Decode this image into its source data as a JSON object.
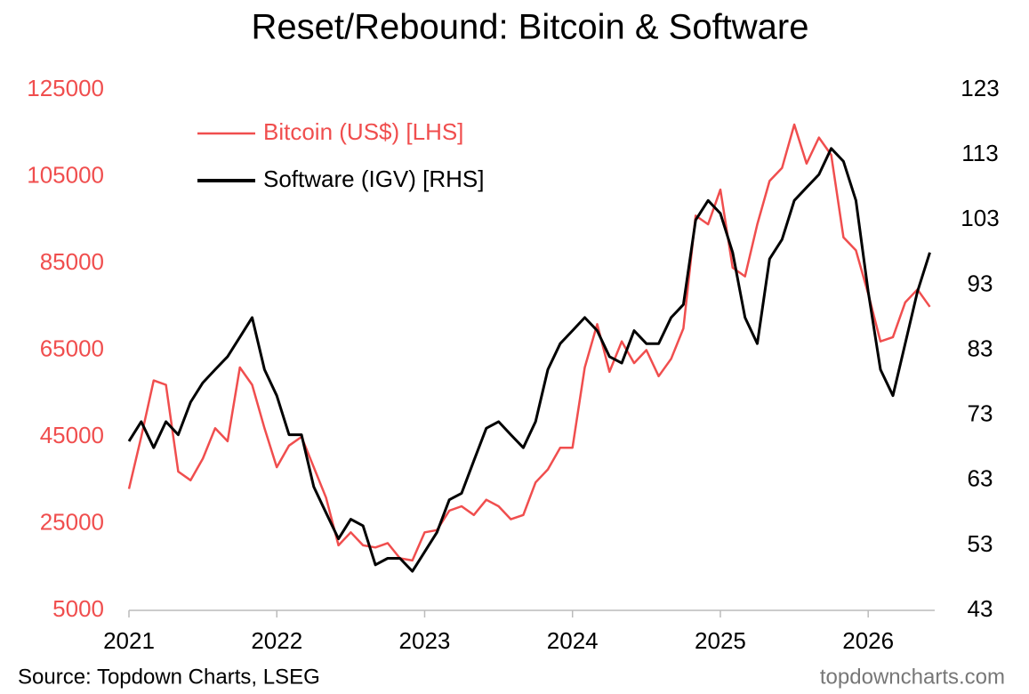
{
  "chart_data": {
    "type": "line",
    "title": "Reset/Rebound: Bitcoin & Software",
    "source": "Source: Topdown Charts, LSEG",
    "watermark": "topdowncharts.com",
    "x": [
      2021,
      2021.083,
      2021.167,
      2021.25,
      2021.333,
      2021.417,
      2021.5,
      2021.583,
      2021.667,
      2021.75,
      2021.833,
      2021.917,
      2022,
      2022.083,
      2022.167,
      2022.25,
      2022.333,
      2022.417,
      2022.5,
      2022.583,
      2022.667,
      2022.75,
      2022.833,
      2022.917,
      2023,
      2023.083,
      2023.167,
      2023.25,
      2023.333,
      2023.417,
      2023.5,
      2023.583,
      2023.667,
      2023.75,
      2023.833,
      2023.917,
      2024,
      2024.083,
      2024.167,
      2024.25,
      2024.333,
      2024.417,
      2024.5,
      2024.583,
      2024.667,
      2024.75,
      2024.833,
      2024.917,
      2025,
      2025.083,
      2025.167,
      2025.25,
      2025.333,
      2025.417,
      2025.5,
      2025.583,
      2025.667,
      2025.75,
      2025.833,
      2025.917,
      2026,
      2026.083,
      2026.167,
      2026.25,
      2026.333,
      2026.417
    ],
    "series": [
      {
        "name": "Bitcoin (US$) [LHS]",
        "color": "#f04e4e",
        "axis": "y",
        "values": [
          33000,
          45000,
          58000,
          57000,
          37000,
          35000,
          40000,
          47000,
          44000,
          61000,
          57000,
          47000,
          38000,
          43000,
          45000,
          38000,
          31000,
          20000,
          23000,
          20000,
          19500,
          20500,
          17000,
          16500,
          23000,
          23500,
          28000,
          29000,
          27000,
          30500,
          29000,
          26000,
          27000,
          34500,
          37500,
          42500,
          42500,
          61000,
          71000,
          60000,
          67000,
          62000,
          65000,
          59000,
          63000,
          70000,
          96000,
          94000,
          102000,
          84000,
          82000,
          94000,
          104000,
          107000,
          117000,
          108000,
          114000,
          110000,
          91000,
          88000,
          78000,
          67000,
          68000,
          76000,
          79000,
          75000
        ]
      },
      {
        "name": "Software (IGV) [RHS]",
        "color": "#000000",
        "axis": "y2",
        "values": [
          69,
          72,
          68,
          72,
          70,
          75,
          78,
          80,
          82,
          85,
          88,
          80,
          76,
          70,
          70,
          62,
          58,
          54,
          57,
          56,
          50,
          51,
          51,
          49,
          52,
          55,
          60,
          61,
          66,
          71,
          72,
          70,
          68,
          72,
          80,
          84,
          86,
          88,
          86,
          82,
          81,
          86,
          84,
          84,
          88,
          90,
          103,
          106,
          104,
          98,
          88,
          84,
          97,
          100,
          106,
          108,
          110,
          114,
          112,
          106,
          92,
          80,
          76,
          84,
          92,
          98
        ]
      }
    ],
    "xlim": [
      2021,
      2026.45
    ],
    "xticks": [
      2021,
      2022,
      2023,
      2024,
      2025,
      2026
    ],
    "ylim": [
      5000,
      125000
    ],
    "yticks": [
      5000,
      25000,
      45000,
      65000,
      85000,
      105000,
      125000
    ],
    "y2lim": [
      43,
      123
    ],
    "y2ticks": [
      43,
      53,
      63,
      73,
      83,
      93,
      103,
      113,
      123
    ],
    "legend": "upper left",
    "grid": false
  }
}
